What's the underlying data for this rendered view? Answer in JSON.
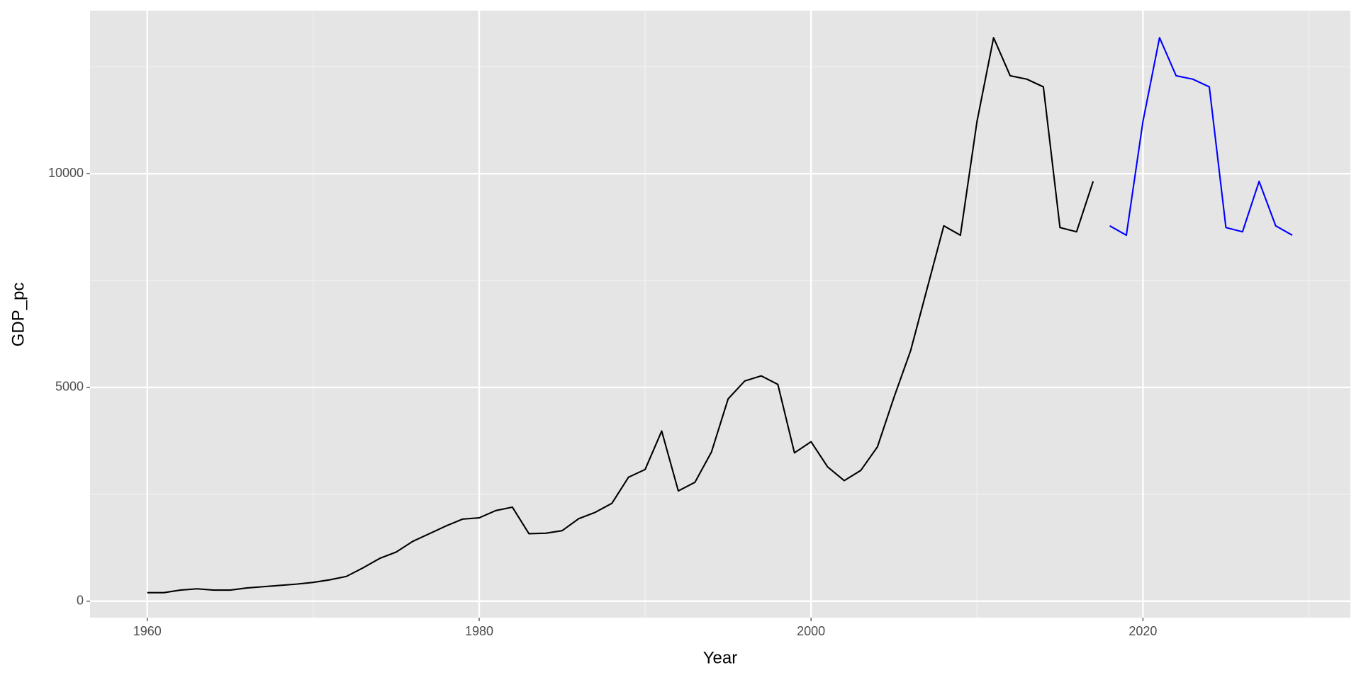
{
  "chart_data": {
    "type": "line",
    "x_label": "Year",
    "y_label": "GDP_pc",
    "xlim": [
      1956.55,
      2032.5
    ],
    "xticks": [
      1960,
      1980,
      2000,
      2020
    ],
    "ylim": [
      -385,
      13813
    ],
    "yticks": [
      0,
      5000,
      10000
    ],
    "grid": true,
    "series": [
      {
        "color": "#000000",
        "x": [
          1960,
          1961,
          1962,
          1963,
          1964,
          1965,
          1966,
          1967,
          1968,
          1969,
          1970,
          1971,
          1972,
          1973,
          1974,
          1975,
          1976,
          1977,
          1978,
          1979,
          1980,
          1981,
          1982,
          1983,
          1984,
          1985,
          1986,
          1987,
          1988,
          1989,
          1990,
          1991,
          1992,
          1993,
          1994,
          1995,
          1996,
          1997,
          1998,
          1999,
          2000,
          2001,
          2002,
          2003,
          2004,
          2005,
          2006,
          2007,
          2008,
          2009,
          2010,
          2011,
          2012,
          2013,
          2014,
          2015,
          2016,
          2017
        ],
        "values": [
          200,
          200,
          260,
          290,
          260,
          260,
          310,
          340,
          370,
          400,
          440,
          500,
          580,
          780,
          1000,
          1150,
          1400,
          1580,
          1760,
          1920,
          1950,
          2120,
          2200,
          1580,
          1590,
          1650,
          1930,
          2080,
          2290,
          2900,
          3080,
          3980,
          2580,
          2780,
          3490,
          4730,
          5150,
          5270,
          5070,
          3470,
          3730,
          3140,
          2820,
          3060,
          3610,
          4770,
          5860,
          7320,
          8780,
          8560,
          11220,
          13180,
          12290,
          12210,
          12030,
          8740,
          8640,
          9820
        ]
      },
      {
        "color": "#0000ff",
        "x": [
          2018,
          2019,
          2020,
          2021,
          2022,
          2023,
          2024,
          2025,
          2026,
          2027,
          2028,
          2029
        ],
        "values": [
          8780,
          8560,
          11220,
          13180,
          12290,
          12210,
          12030,
          8740,
          8640,
          9820,
          8780,
          8560
        ]
      }
    ]
  }
}
